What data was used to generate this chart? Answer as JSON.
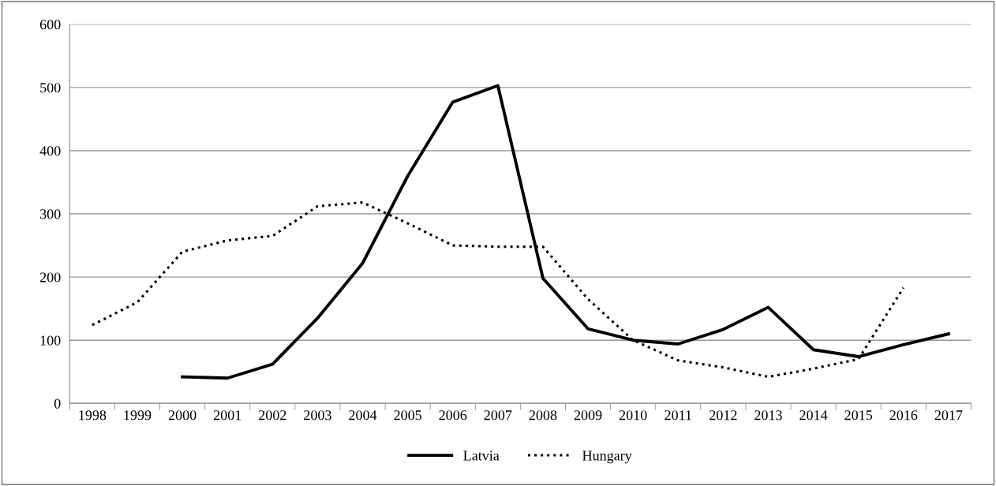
{
  "chart_data": {
    "type": "line",
    "categories": [
      "1998",
      "1999",
      "2000",
      "2001",
      "2002",
      "2003",
      "2004",
      "2005",
      "2006",
      "2007",
      "2008",
      "2009",
      "2010",
      "2011",
      "2012",
      "2013",
      "2014",
      "2015",
      "2016",
      "2017"
    ],
    "series": [
      {
        "name": "Latvia",
        "color": "#000000",
        "line_style": "solid",
        "values": [
          null,
          null,
          42,
          40,
          62,
          135,
          222,
          360,
          477,
          503,
          198,
          118,
          100,
          94,
          117,
          152,
          85,
          74,
          93,
          110
        ]
      },
      {
        "name": "Hungary",
        "color": "#000000",
        "line_style": "dotted",
        "values": [
          124,
          160,
          240,
          258,
          265,
          312,
          318,
          285,
          250,
          248,
          248,
          165,
          100,
          68,
          57,
          42,
          55,
          70,
          183,
          null
        ]
      }
    ],
    "ylim": [
      0,
      600
    ],
    "yticks": [
      0,
      100,
      200,
      300,
      400,
      500,
      600
    ],
    "grid": "y",
    "legend": "bottom",
    "marker": "none"
  }
}
